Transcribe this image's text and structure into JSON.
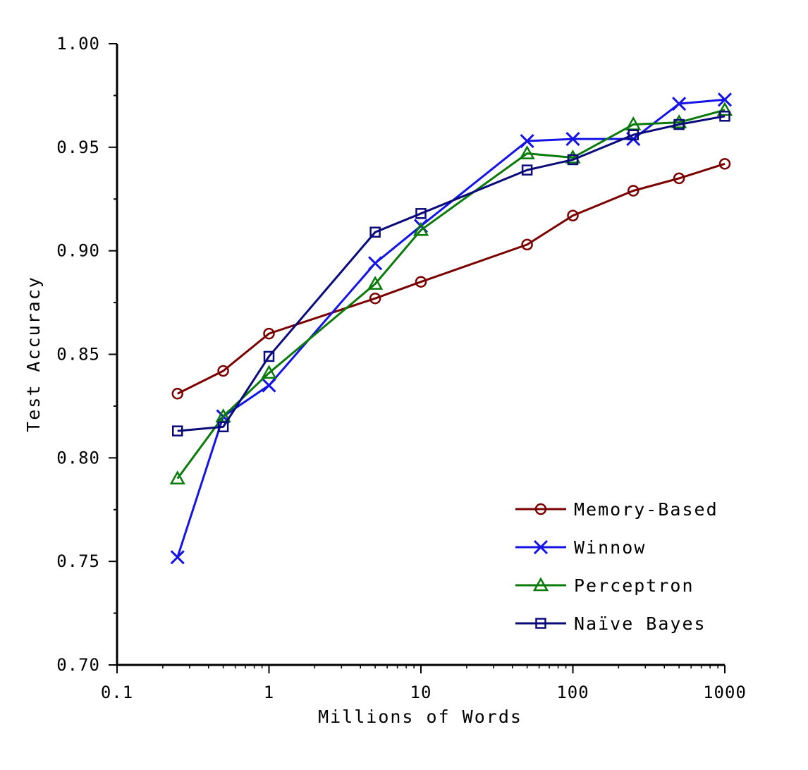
{
  "chart_data": {
    "type": "line",
    "title": "",
    "xlabel": "Millions of Words",
    "ylabel": "Test Accuracy",
    "xscale": "log",
    "xlim": [
      0.1,
      1000
    ],
    "ylim": [
      0.7,
      1.0
    ],
    "x_ticks": [
      {
        "value": 0.1,
        "label": "0.1"
      },
      {
        "value": 1,
        "label": "1"
      },
      {
        "value": 10,
        "label": "10"
      },
      {
        "value": 100,
        "label": "100"
      },
      {
        "value": 1000,
        "label": "1000"
      }
    ],
    "y_ticks": [
      {
        "value": 0.7,
        "label": "0.70"
      },
      {
        "value": 0.75,
        "label": "0.75"
      },
      {
        "value": 0.8,
        "label": "0.80"
      },
      {
        "value": 0.85,
        "label": "0.85"
      },
      {
        "value": 0.9,
        "label": "0.90"
      },
      {
        "value": 0.95,
        "label": "0.95"
      },
      {
        "value": 1.0,
        "label": "1.00"
      }
    ],
    "y_minor_step": 0.025,
    "grid": false,
    "legend_position": "bottom-right",
    "x": [
      0.25,
      0.5,
      1,
      5,
      10,
      50,
      100,
      250,
      500,
      1000
    ],
    "series": [
      {
        "name": "Memory-Based",
        "color": "#7a0000",
        "marker": "circle",
        "values": [
          0.831,
          0.842,
          0.86,
          0.877,
          0.885,
          0.903,
          0.917,
          0.929,
          0.935,
          0.942
        ]
      },
      {
        "name": "Winnow",
        "color": "#1414e6",
        "marker": "x",
        "values": [
          0.752,
          0.82,
          0.835,
          0.894,
          0.912,
          0.953,
          0.954,
          0.954,
          0.971,
          0.973
        ]
      },
      {
        "name": "Perceptron",
        "color": "#0a7a0a",
        "marker": "triangle",
        "values": [
          0.79,
          0.82,
          0.841,
          0.884,
          0.91,
          0.947,
          0.945,
          0.961,
          0.962,
          0.968
        ]
      },
      {
        "name": "Naïve Bayes",
        "color": "#0a0a7a",
        "marker": "square",
        "values": [
          0.813,
          0.815,
          0.849,
          0.909,
          0.918,
          0.939,
          0.944,
          0.956,
          0.961,
          0.965
        ]
      }
    ]
  }
}
